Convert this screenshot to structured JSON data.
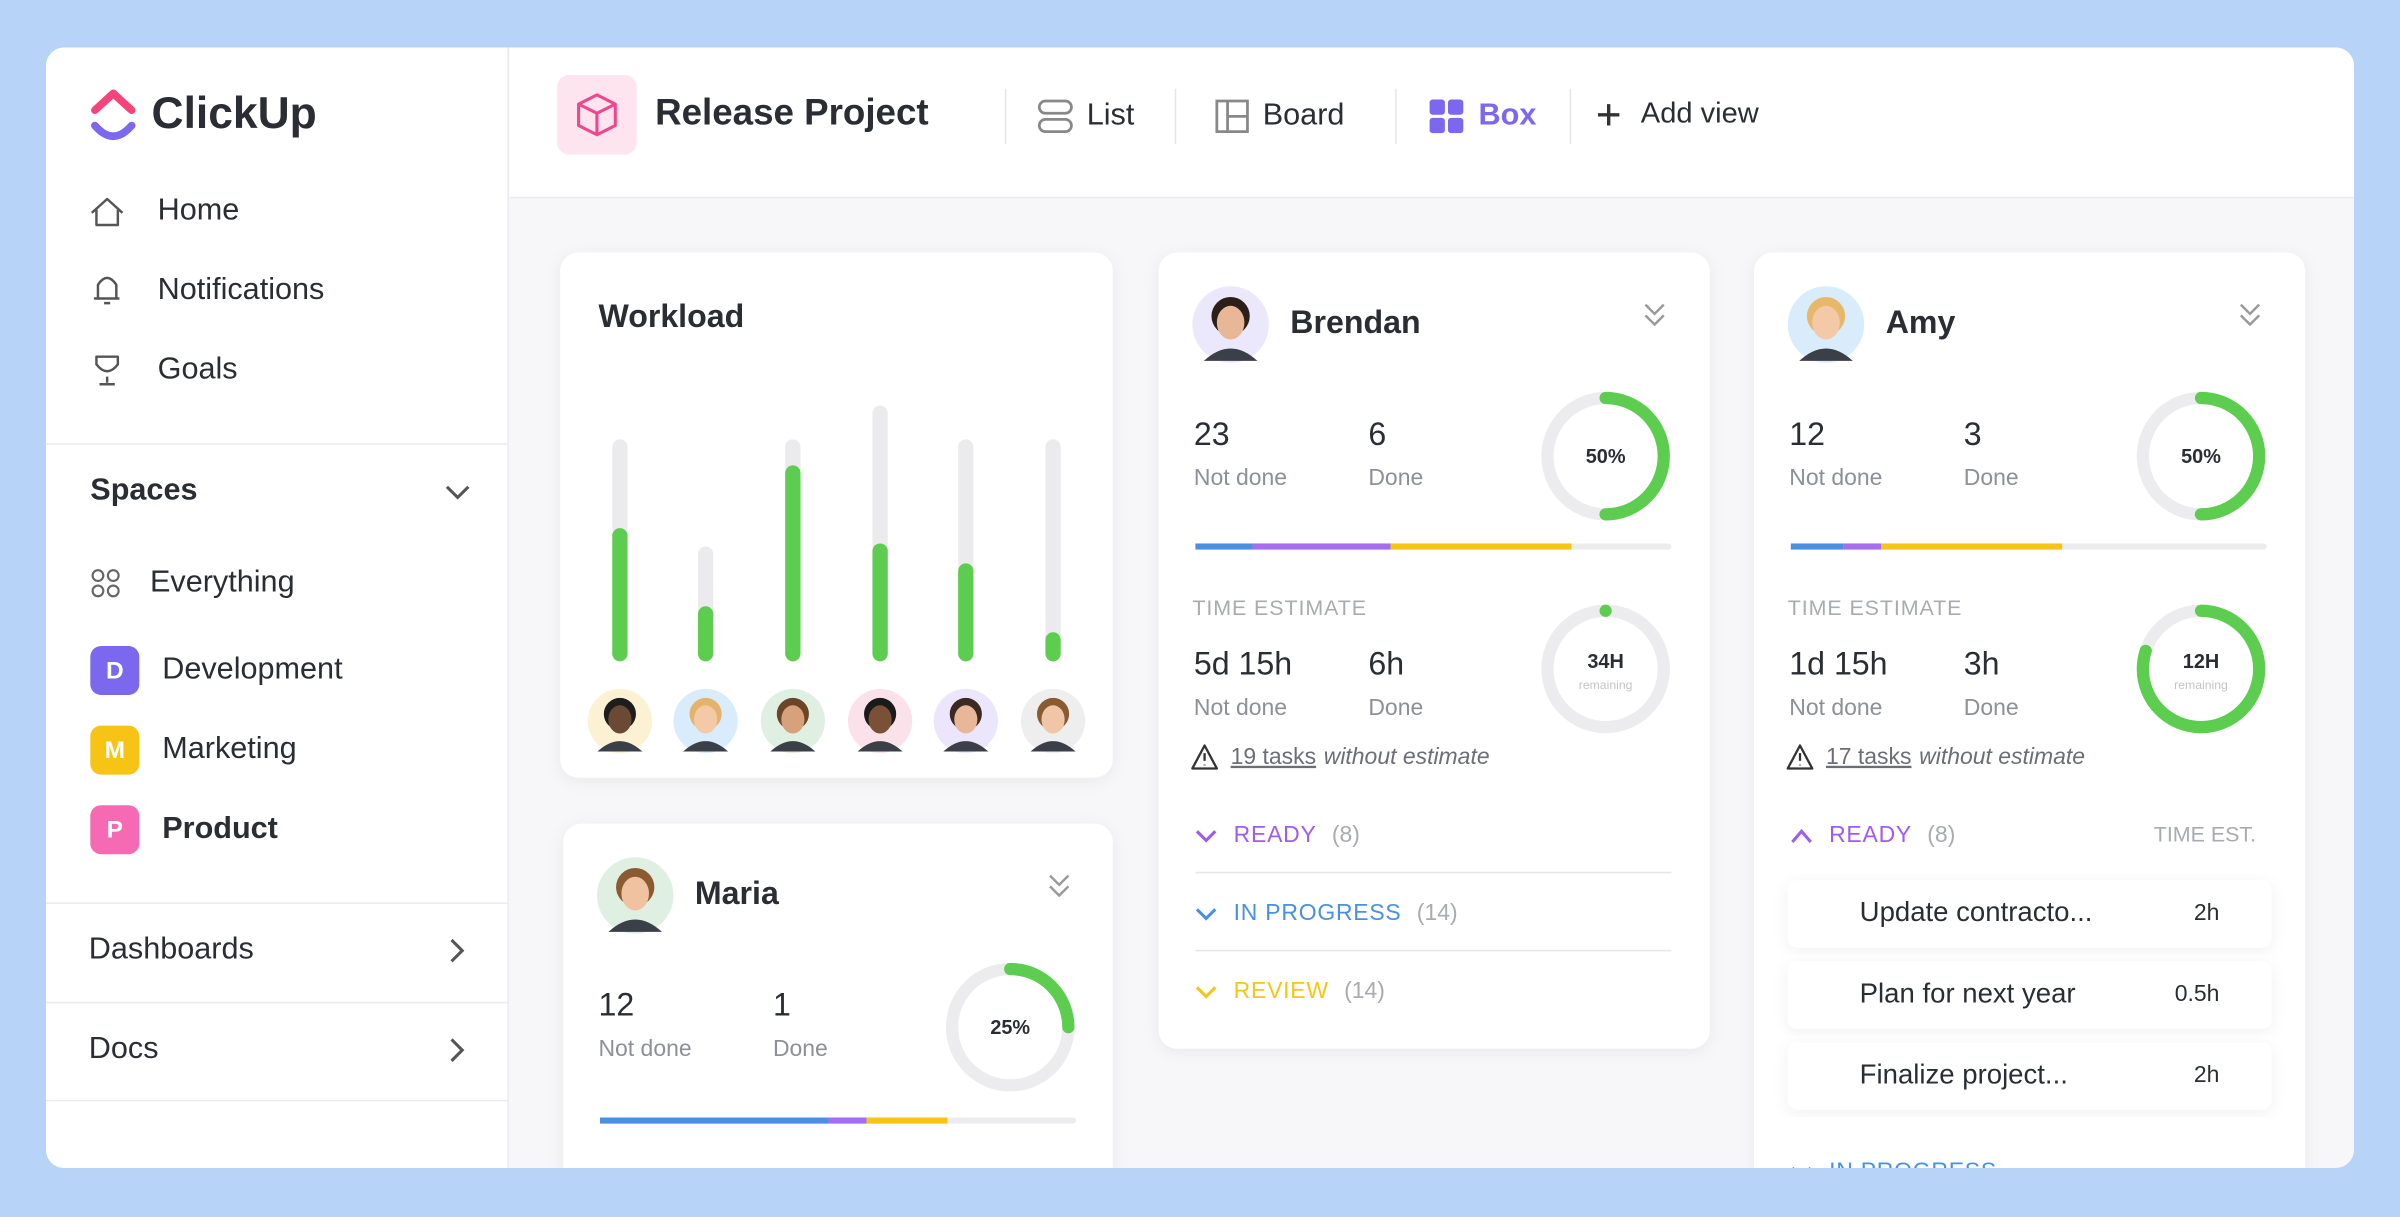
{
  "sidebar": {
    "brand": "ClickUp",
    "nav": [
      "Home",
      "Notifications",
      "Goals"
    ],
    "spaces_title": "Spaces",
    "spaces": [
      {
        "label": "Everything"
      },
      {
        "badge": "D",
        "label": "Development",
        "color": "#7b68ee"
      },
      {
        "badge": "M",
        "label": "Marketing",
        "color": "#f7c416"
      },
      {
        "badge": "P",
        "label": "Product",
        "color": "#f66ab4"
      }
    ],
    "sections": [
      "Dashboards",
      "Docs"
    ]
  },
  "header": {
    "title": "Release Project",
    "views": [
      "List",
      "Board",
      "Box"
    ],
    "add_view": "Add view"
  },
  "workload": {
    "title": "Workload",
    "capacity": [
      145,
      75,
      145,
      167,
      145,
      145
    ],
    "done": [
      87,
      36,
      128,
      77,
      64,
      19
    ],
    "color": "#5ccd4e"
  },
  "people": [
    {
      "name": "Brendan",
      "not_done": 23,
      "not_done_label": "Not done",
      "done": 6,
      "done_label": "Done",
      "progress": {
        "value": 50,
        "label": "50%"
      },
      "segments": [
        12,
        29,
        38
      ],
      "time_title": "TIME ESTIMATE",
      "time_not_done": "5d 15h",
      "time_not_done_label": "Not done",
      "time_done": "6h",
      "time_done_label": "Done",
      "time_ring": {
        "value": 0,
        "label": "34H"
      },
      "remaining": "remaining",
      "warning_link": "19 tasks",
      "warning_text": "without estimate",
      "groups": [
        {
          "name": "READY",
          "count": "(8)",
          "color": "#a05cf0"
        },
        {
          "name": "IN PROGRESS",
          "count": "(14)",
          "color": "#4a90e2"
        },
        {
          "name": "REVIEW",
          "count": "(14)",
          "color": "#f5c518"
        }
      ]
    },
    {
      "name": "Amy",
      "not_done": 12,
      "not_done_label": "Not done",
      "done": 3,
      "done_label": "Done",
      "progress": {
        "value": 50,
        "label": "50%"
      },
      "segments": [
        11,
        8,
        38
      ],
      "time_title": "TIME ESTIMATE",
      "time_not_done": "1d 15h",
      "time_not_done_label": "Not done",
      "time_done": "3h",
      "time_done_label": "Done",
      "time_ring": {
        "value": 80,
        "label": "12H"
      },
      "remaining": "remaining",
      "warning_link": "17 tasks",
      "warning_text": "without estimate",
      "groups": [
        {
          "name": "READY",
          "count": "(8)",
          "color": "#a05cf0",
          "column": "TIME EST.",
          "tasks": [
            {
              "name": "Update contracto...",
              "estimate": "2h"
            },
            {
              "name": "Plan for next year",
              "estimate": "0.5h"
            },
            {
              "name": "Finalize project...",
              "estimate": "2h"
            }
          ]
        },
        {
          "name": "IN PROGRESS",
          "color": "#4a90e2"
        }
      ]
    },
    {
      "name": "Maria",
      "not_done": 12,
      "not_done_label": "Not done",
      "done": 1,
      "done_label": "Done",
      "progress": {
        "value": 25,
        "label": "25%"
      },
      "segments": [
        48,
        8,
        17
      ]
    }
  ],
  "colors": {
    "segments": [
      "#4a90e2",
      "#a66cf2",
      "#f7c416"
    ],
    "ring": "#5ccd4e",
    "accent": "#7b68ee"
  }
}
